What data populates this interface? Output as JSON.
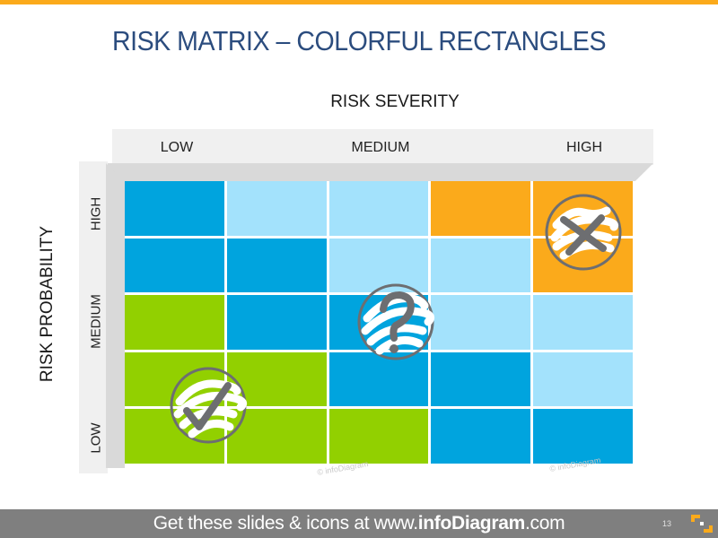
{
  "slide": {
    "title": "RISK MATRIX – COLORFUL RECTANGLES",
    "accent_color": "#fbaa1b"
  },
  "axes": {
    "severity_title": "RISK SEVERITY",
    "probability_title": "RISK PROBABILITY",
    "severity_levels": [
      "LOW",
      "MEDIUM",
      "HIGH"
    ],
    "probability_levels": [
      "HIGH",
      "MEDIUM",
      "LOW"
    ]
  },
  "colors": {
    "dark_blue": "#00a4de",
    "light_blue": "#a3e2fc",
    "orange": "#fbaa1b",
    "green": "#92d000",
    "icon_gray": "#6d6e71"
  },
  "matrix": {
    "rows": [
      [
        "dark_blue",
        "light_blue",
        "light_blue",
        "orange",
        "orange"
      ],
      [
        "dark_blue",
        "dark_blue",
        "light_blue",
        "light_blue",
        "orange"
      ],
      [
        "green",
        "dark_blue",
        "dark_blue",
        "light_blue",
        "light_blue"
      ],
      [
        "green",
        "green",
        "dark_blue",
        "dark_blue",
        "light_blue"
      ],
      [
        "green",
        "green",
        "green",
        "dark_blue",
        "dark_blue"
      ]
    ]
  },
  "icons": [
    {
      "name": "cross-mark-icon",
      "meaning": "high risk"
    },
    {
      "name": "question-mark-icon",
      "meaning": "medium risk"
    },
    {
      "name": "check-mark-icon",
      "meaning": "low risk"
    }
  ],
  "watermarks": [
    "© infoDiagram",
    "© infoDiagram",
    "© infoDiagram"
  ],
  "footer": {
    "text_prefix": "Get these slides & icons at www.",
    "text_brand": "infoDiagram",
    "text_suffix": ".com",
    "page_number": "13"
  }
}
